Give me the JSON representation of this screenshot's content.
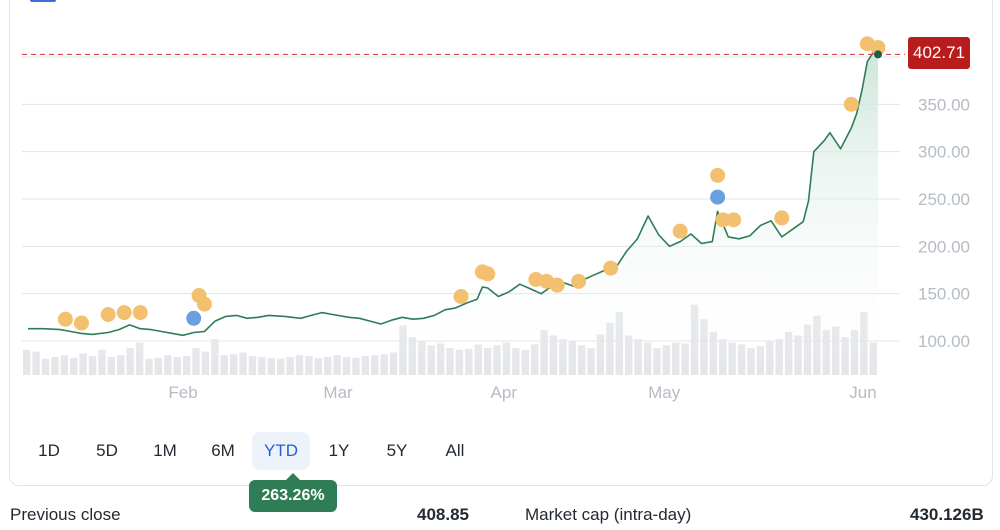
{
  "chart_data": {
    "type": "line",
    "title": "",
    "xlabel": "",
    "ylabel": "",
    "ylim": [
      80,
      420
    ],
    "y_ticks": [
      "100.00",
      "150.00",
      "200.00",
      "250.00",
      "300.00",
      "350.00"
    ],
    "month_labels": [
      {
        "label": "Feb",
        "day": 31
      },
      {
        "label": "Mar",
        "day": 60
      },
      {
        "label": "Apr",
        "day": 91
      },
      {
        "label": "May",
        "day": 121
      },
      {
        "label": "Jun",
        "day": 152
      }
    ],
    "x_range_days": [
      0,
      155
    ],
    "series": [
      {
        "values_by_day": [
          [
            2,
            113
          ],
          [
            5,
            113
          ],
          [
            8,
            112
          ],
          [
            10,
            110
          ],
          [
            12,
            108
          ],
          [
            14,
            107
          ],
          [
            17,
            109
          ],
          [
            19,
            112
          ],
          [
            21,
            117
          ],
          [
            23,
            113
          ],
          [
            25,
            112
          ],
          [
            27,
            110
          ],
          [
            29,
            108
          ],
          [
            31,
            106
          ],
          [
            33,
            109
          ],
          [
            35,
            110
          ],
          [
            37,
            121
          ],
          [
            39,
            126
          ],
          [
            41,
            127
          ],
          [
            43,
            124
          ],
          [
            45,
            125
          ],
          [
            47,
            127
          ],
          [
            50,
            126
          ],
          [
            53,
            124
          ],
          [
            55,
            127
          ],
          [
            57,
            130
          ],
          [
            59,
            128
          ],
          [
            62,
            125
          ],
          [
            64,
            124
          ],
          [
            66,
            121
          ],
          [
            68,
            118
          ],
          [
            70,
            122
          ],
          [
            72,
            125
          ],
          [
            74,
            123
          ],
          [
            76,
            124
          ],
          [
            78,
            127
          ],
          [
            80,
            133
          ],
          [
            82,
            135
          ],
          [
            84,
            140
          ],
          [
            86,
            144
          ],
          [
            87,
            157
          ],
          [
            88,
            156
          ],
          [
            90,
            147
          ],
          [
            92,
            152
          ],
          [
            94,
            160
          ],
          [
            96,
            155
          ],
          [
            98,
            150
          ],
          [
            100,
            158
          ],
          [
            102,
            162
          ],
          [
            104,
            158
          ],
          [
            106,
            165
          ],
          [
            108,
            170
          ],
          [
            110,
            175
          ],
          [
            112,
            178
          ],
          [
            114,
            195
          ],
          [
            116,
            208
          ],
          [
            118,
            232
          ],
          [
            120,
            212
          ],
          [
            122,
            200
          ],
          [
            124,
            205
          ],
          [
            126,
            213
          ],
          [
            128,
            203
          ],
          [
            130,
            205
          ],
          [
            131,
            237
          ],
          [
            133,
            210
          ],
          [
            135,
            208
          ],
          [
            137,
            211
          ],
          [
            139,
            222
          ],
          [
            141,
            227
          ],
          [
            143,
            210
          ],
          [
            145,
            218
          ],
          [
            147,
            226
          ],
          [
            148,
            248
          ],
          [
            149,
            300
          ],
          [
            151,
            312
          ],
          [
            152,
            320
          ],
          [
            154,
            303
          ],
          [
            156,
            325
          ],
          [
            157,
            340
          ],
          [
            158,
            365
          ],
          [
            159,
            395
          ],
          [
            160,
            404
          ],
          [
            161,
            402.71
          ]
        ],
        "volume": [
          0.28,
          0.26,
          0.18,
          0.2,
          0.22,
          0.19,
          0.24,
          0.21,
          0.28,
          0.2,
          0.22,
          0.3,
          0.36,
          0.18,
          0.19,
          0.22,
          0.2,
          0.21,
          0.3,
          0.26,
          0.4,
          0.22,
          0.23,
          0.25,
          0.21,
          0.2,
          0.19,
          0.18,
          0.2,
          0.22,
          0.21,
          0.19,
          0.2,
          0.22,
          0.2,
          0.19,
          0.21,
          0.22,
          0.23,
          0.25,
          0.55,
          0.42,
          0.38,
          0.33,
          0.35,
          0.3,
          0.28,
          0.29,
          0.34,
          0.3,
          0.33,
          0.36,
          0.3,
          0.28,
          0.34,
          0.5,
          0.44,
          0.4,
          0.38,
          0.33,
          0.3,
          0.45,
          0.58,
          0.7,
          0.44,
          0.4,
          0.36,
          0.3,
          0.33,
          0.36,
          0.35,
          0.78,
          0.62,
          0.48,
          0.4,
          0.36,
          0.34,
          0.3,
          0.32,
          0.38,
          0.4,
          0.48,
          0.44,
          0.56,
          0.66,
          0.5,
          0.54,
          0.42,
          0.5,
          0.7,
          0.36
        ]
      }
    ],
    "last_value": "402.71",
    "event_markers": [
      {
        "day": 9,
        "value": 123,
        "kind": "orange"
      },
      {
        "day": 12,
        "value": 119,
        "kind": "orange"
      },
      {
        "day": 17,
        "value": 128,
        "kind": "orange"
      },
      {
        "day": 20,
        "value": 130,
        "kind": "orange"
      },
      {
        "day": 23,
        "value": 130,
        "kind": "orange"
      },
      {
        "day": 34,
        "value": 148,
        "kind": "orange"
      },
      {
        "day": 35,
        "value": 139,
        "kind": "orange"
      },
      {
        "day": 33,
        "value": 124,
        "kind": "blue"
      },
      {
        "day": 83,
        "value": 147,
        "kind": "orange"
      },
      {
        "day": 87,
        "value": 173,
        "kind": "orange"
      },
      {
        "day": 88,
        "value": 171,
        "kind": "orange"
      },
      {
        "day": 97,
        "value": 165,
        "kind": "orange"
      },
      {
        "day": 99,
        "value": 163,
        "kind": "orange"
      },
      {
        "day": 101,
        "value": 159,
        "kind": "orange"
      },
      {
        "day": 105,
        "value": 163,
        "kind": "orange"
      },
      {
        "day": 111,
        "value": 177,
        "kind": "orange"
      },
      {
        "day": 124,
        "value": 216,
        "kind": "orange"
      },
      {
        "day": 131,
        "value": 275,
        "kind": "orange"
      },
      {
        "day": 131,
        "value": 252,
        "kind": "blue"
      },
      {
        "day": 132,
        "value": 228,
        "kind": "orange"
      },
      {
        "day": 134,
        "value": 228,
        "kind": "orange"
      },
      {
        "day": 143,
        "value": 230,
        "kind": "orange"
      },
      {
        "day": 156,
        "value": 350,
        "kind": "orange"
      },
      {
        "day": 159,
        "value": 414,
        "kind": "orange"
      },
      {
        "day": 161,
        "value": 410,
        "kind": "orange"
      }
    ],
    "grid": true
  },
  "colors": {
    "line": "#2f7d57",
    "area_top": "#cfe6dc",
    "area_bottom": "#ffffff",
    "grid": "#dfe3e8",
    "reference": "#d94848",
    "marker_orange": "#f2c06e",
    "marker_blue": "#6aa0e0",
    "volume": "#e4e6e9",
    "axis_text": "#b6bcc4"
  },
  "ranges": {
    "items": [
      "1D",
      "5D",
      "1M",
      "6M",
      "YTD",
      "1Y",
      "5Y",
      "All"
    ],
    "selected": "YTD",
    "change_badge": "263.26%"
  },
  "stats": {
    "previous_close_label": "Previous close",
    "previous_close_value": "408.85",
    "market_cap_label": "Market cap (intra-day)",
    "market_cap_value": "430.126B"
  }
}
